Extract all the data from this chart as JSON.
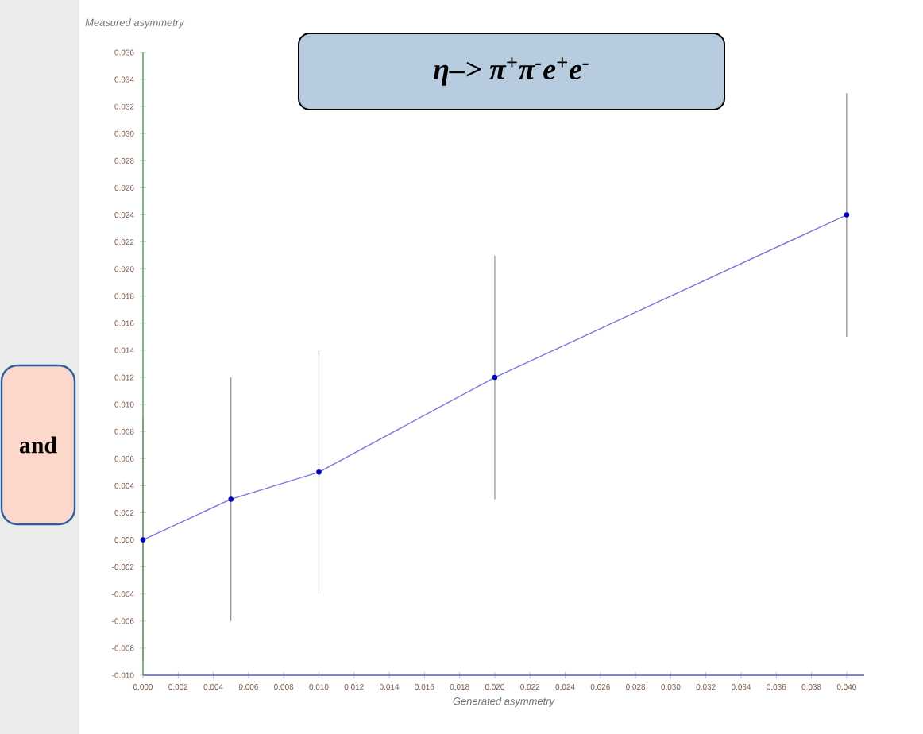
{
  "chart_data": {
    "type": "line",
    "title": "η–> π$^{+}$π$^{-}$e$^{+}$e$^{-}$",
    "xlabel": "Generated asymmetry",
    "ylabel": "Measured asymmetry",
    "annotations": [
      "and"
    ],
    "x": [
      0,
      0.005,
      0.01,
      0.02,
      0.04
    ],
    "values": [
      0,
      0.003,
      0.005,
      0.012,
      0.024
    ],
    "errors": [
      0.009,
      0.009,
      0.009,
      0.009,
      0.009
    ],
    "color": "#7878e0",
    "marker": "circle",
    "line_style": "solid",
    "xlim": [
      0,
      0.041
    ],
    "ylim": [
      -0.01,
      0.036
    ],
    "xticks": [
      {
        "value": 0,
        "label": "0.000"
      },
      {
        "value": 0.002,
        "label": "0.002"
      },
      {
        "value": 0.004,
        "label": "0.004"
      },
      {
        "value": 0.006,
        "label": "0.006"
      },
      {
        "value": 0.008,
        "label": "0.008"
      },
      {
        "value": 0.01,
        "label": "0.010"
      },
      {
        "value": 0.012,
        "label": "0.012"
      },
      {
        "value": 0.014,
        "label": "0.014"
      },
      {
        "value": 0.016,
        "label": "0.016"
      },
      {
        "value": 0.018,
        "label": "0.018"
      },
      {
        "value": 0.02,
        "label": "0.020"
      },
      {
        "value": 0.022,
        "label": "0.022"
      },
      {
        "value": 0.024,
        "label": "0.024"
      },
      {
        "value": 0.026,
        "label": "0.026"
      },
      {
        "value": 0.028,
        "label": "0.028"
      },
      {
        "value": 0.03,
        "label": "0.030"
      },
      {
        "value": 0.032,
        "label": "0.032"
      },
      {
        "value": 0.034,
        "label": "0.034"
      },
      {
        "value": 0.036,
        "label": "0.036"
      },
      {
        "value": 0.038,
        "label": "0.038"
      },
      {
        "value": 0.04,
        "label": "0.040"
      }
    ],
    "yticks": [
      {
        "value": -0.01,
        "label": "-0.010"
      },
      {
        "value": -0.008,
        "label": "-0.008"
      },
      {
        "value": -0.006,
        "label": "-0.006"
      },
      {
        "value": -0.004,
        "label": "-0.004"
      },
      {
        "value": -0.002,
        "label": "-0.002"
      },
      {
        "value": 0,
        "label": "0.000"
      },
      {
        "value": 0.002,
        "label": "0.002"
      },
      {
        "value": 0.004,
        "label": "0.004"
      },
      {
        "value": 0.006,
        "label": "0.006"
      },
      {
        "value": 0.008,
        "label": "0.008"
      },
      {
        "value": 0.01,
        "label": "0.010"
      },
      {
        "value": 0.012,
        "label": "0.012"
      },
      {
        "value": 0.014,
        "label": "0.014"
      },
      {
        "value": 0.016,
        "label": "0.016"
      },
      {
        "value": 0.018,
        "label": "0.018"
      },
      {
        "value": 0.02,
        "label": "0.020"
      },
      {
        "value": 0.022,
        "label": "0.022"
      },
      {
        "value": 0.024,
        "label": "0.024"
      },
      {
        "value": 0.026,
        "label": "0.026"
      },
      {
        "value": 0.028,
        "label": "0.028"
      },
      {
        "value": 0.03,
        "label": "0.030"
      },
      {
        "value": 0.032,
        "label": "0.032"
      },
      {
        "value": 0.034,
        "label": "0.034"
      },
      {
        "value": 0.036,
        "label": "0.036"
      }
    ]
  }
}
